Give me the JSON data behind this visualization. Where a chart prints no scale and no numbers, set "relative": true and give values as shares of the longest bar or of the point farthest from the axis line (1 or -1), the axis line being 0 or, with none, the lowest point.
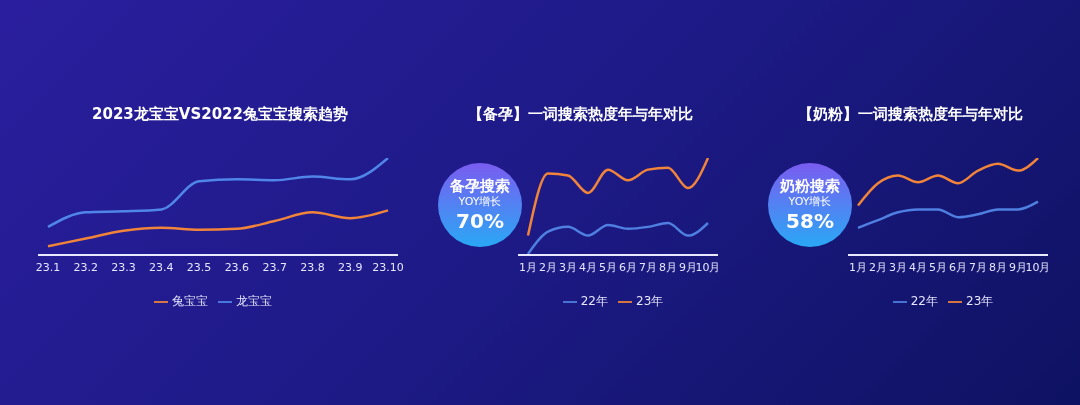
{
  "chart_data": [
    {
      "type": "line",
      "title": "2023龙宝宝VS2022兔宝宝搜索趋势",
      "categories": [
        "23.1",
        "23.2",
        "23.3",
        "23.4",
        "23.5",
        "23.6",
        "23.7",
        "23.8",
        "23.9",
        "23.10"
      ],
      "relative": true,
      "legend": "bottom",
      "series": [
        {
          "name": "龙宝宝",
          "color": "#4f86e8",
          "values": [
            0.29,
            0.44,
            0.45,
            0.47,
            0.76,
            0.78,
            0.77,
            0.81,
            0.78,
            1
          ]
        },
        {
          "name": "兔宝宝",
          "color": "#f0843a",
          "values": [
            0.09,
            0.17,
            0.25,
            0.28,
            0.26,
            0.27,
            0.35,
            0.44,
            0.38,
            0.46
          ]
        }
      ]
    },
    {
      "type": "line",
      "title": "【备孕】一词搜索热度年与年对比",
      "categories": [
        "1月",
        "2月",
        "3月",
        "4月",
        "5月",
        "6月",
        "7月",
        "8月",
        "9月",
        "10月"
      ],
      "relative": true,
      "legend": "bottom",
      "annotations": [
        "备孕搜索",
        "YOY增长",
        "70%"
      ],
      "series": [
        {
          "name": "22年",
          "color": "#4f7fe0",
          "values": [
            0.01,
            0.24,
            0.29,
            0.2,
            0.31,
            0.27,
            0.29,
            0.33,
            0.2,
            0.33
          ]
        },
        {
          "name": "23年",
          "color": "#f0843a",
          "values": [
            0.2,
            0.84,
            0.82,
            0.64,
            0.88,
            0.77,
            0.88,
            0.9,
            0.69,
            1
          ]
        }
      ]
    },
    {
      "type": "line",
      "title": "【奶粉】一词搜索热度年与年对比",
      "categories": [
        "1月",
        "2月",
        "3月",
        "4月",
        "5月",
        "6月",
        "7月",
        "8月",
        "9月",
        "10月"
      ],
      "relative": true,
      "legend": "bottom",
      "annotations": [
        "奶粉搜索",
        "YOY增长",
        "58%"
      ],
      "series": [
        {
          "name": "22年",
          "color": "#4f7fe0",
          "values": [
            0.28,
            0.36,
            0.44,
            0.47,
            0.47,
            0.39,
            0.42,
            0.47,
            0.47,
            0.55
          ]
        },
        {
          "name": "23年",
          "color": "#f0843a",
          "values": [
            0.51,
            0.74,
            0.82,
            0.75,
            0.82,
            0.74,
            0.87,
            0.94,
            0.87,
            1
          ]
        }
      ]
    }
  ]
}
